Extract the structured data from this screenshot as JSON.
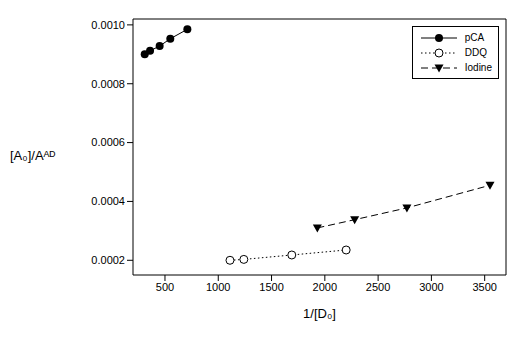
{
  "chart_data": {
    "type": "line",
    "x_label": "1/[D₀]",
    "y_label": "[A₀]/Aᴬᴰ",
    "xlim": [
      200,
      3700
    ],
    "xticks": [
      500,
      1000,
      1500,
      2000,
      2500,
      3000,
      3500
    ],
    "ylim": [
      0.00015,
      0.00102
    ],
    "yticks": [
      0.0002,
      0.0004,
      0.0006,
      0.0008,
      {
        "value": 0.001,
        "label": "0.0010"
      }
    ],
    "legend": "top right",
    "series": [
      {
        "name": "pCA",
        "color": "#000000",
        "marker": "circle",
        "line_style": "solid",
        "x": [
          310,
          360,
          450,
          550,
          710
        ],
        "values": [
          0.0009,
          0.000912,
          0.000928,
          0.000953,
          0.000985
        ]
      },
      {
        "name": "DDQ",
        "color": "#000000",
        "marker": "open_circle",
        "line_style": "dotted",
        "x": [
          1110,
          1240,
          1690,
          2200
        ],
        "values": [
          0.0002,
          0.000203,
          0.000218,
          0.000235
        ]
      },
      {
        "name": "Iodine",
        "color": "#000000",
        "marker": "triangle_down",
        "line_style": "dashed",
        "x": [
          1930,
          2280,
          2770,
          3550
        ],
        "values": [
          0.00031,
          0.000338,
          0.000378,
          0.000455
        ]
      }
    ]
  }
}
